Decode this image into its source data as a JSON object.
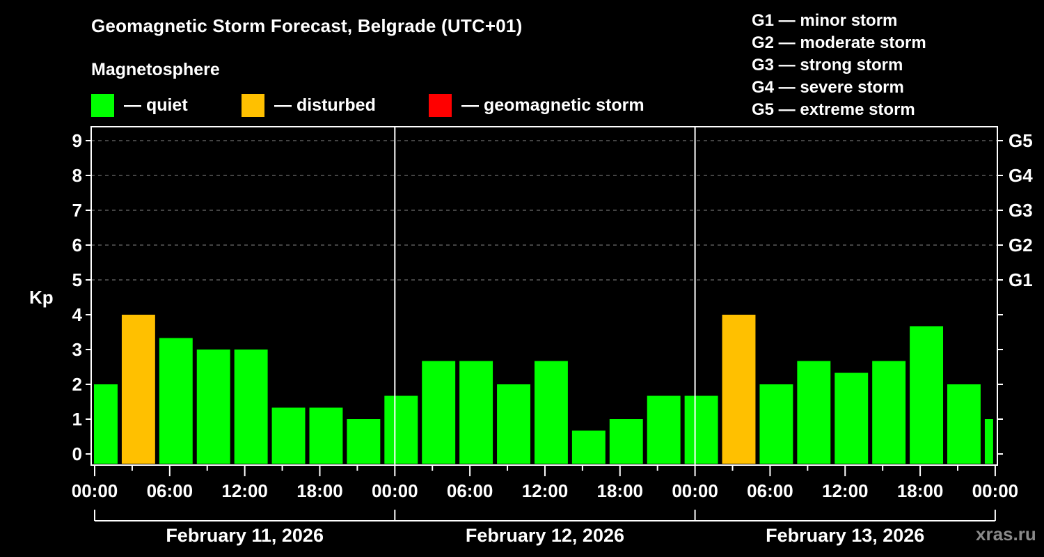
{
  "header": {
    "title": "Geomagnetic Storm Forecast, Belgrade (UTC+01)",
    "subtitle": "Magnetosphere"
  },
  "legend": {
    "items": [
      {
        "label": "— quiet",
        "color": "#00ff00"
      },
      {
        "label": "— disturbed",
        "color": "#ffc000"
      },
      {
        "label": "— geomagnetic storm",
        "color": "#ff0000"
      }
    ]
  },
  "g_scale_legend": [
    "G1 — minor storm",
    "G2 — moderate storm",
    "G3 — strong storm",
    "G4 — severe storm",
    "G5 — extreme storm"
  ],
  "watermark": "xras.ru",
  "chart_data": {
    "type": "bar",
    "title": "Geomagnetic Storm Forecast, Belgrade (UTC+01)",
    "xlabel": "",
    "ylabel": "Kp",
    "ylim": [
      0,
      9
    ],
    "yticks": [
      "0",
      "1",
      "2",
      "3",
      "4",
      "5",
      "6",
      "7",
      "8",
      "9"
    ],
    "right_axis_labels": [
      {
        "kp": 5,
        "label": "G1"
      },
      {
        "kp": 6,
        "label": "G2"
      },
      {
        "kp": 7,
        "label": "G3"
      },
      {
        "kp": 8,
        "label": "G4"
      },
      {
        "kp": 9,
        "label": "G5"
      }
    ],
    "grid": "dashed horizontal at Kp 5-9",
    "xticks": [
      "00:00",
      "06:00",
      "12:00",
      "18:00",
      "00:00",
      "06:00",
      "12:00",
      "18:00",
      "00:00",
      "06:00",
      "12:00",
      "18:00",
      "00:00"
    ],
    "days": [
      "February 11, 2026",
      "February 12, 2026",
      "February 13, 2026"
    ],
    "interval_hours": 3,
    "utc_offset_hours": 1,
    "categories": [
      "Feb 11 00:00-02:00",
      "Feb 11 02:00-05:00",
      "Feb 11 05:00-08:00",
      "Feb 11 08:00-11:00",
      "Feb 11 11:00-14:00",
      "Feb 11 14:00-17:00",
      "Feb 11 17:00-20:00",
      "Feb 11 20:00-23:00",
      "Feb 11 23:00-02:00",
      "Feb 12 02:00-05:00",
      "Feb 12 05:00-08:00",
      "Feb 12 08:00-11:00",
      "Feb 12 11:00-14:00",
      "Feb 12 14:00-17:00",
      "Feb 12 17:00-20:00",
      "Feb 12 20:00-23:00",
      "Feb 12 23:00-02:00",
      "Feb 13 02:00-05:00",
      "Feb 13 05:00-08:00",
      "Feb 13 08:00-11:00",
      "Feb 13 11:00-14:00",
      "Feb 13 14:00-17:00",
      "Feb 13 17:00-20:00",
      "Feb 13 20:00-23:00",
      "Feb 13 23:00-00:00"
    ],
    "values": [
      2,
      4,
      3.33,
      3,
      3,
      1.33,
      1.33,
      1,
      1.67,
      2.67,
      2.67,
      2,
      2.67,
      0.67,
      1,
      1.67,
      1.67,
      4,
      2,
      2.67,
      2.33,
      2.67,
      3.67,
      2,
      1
    ],
    "status": [
      "quiet",
      "disturbed",
      "quiet",
      "quiet",
      "quiet",
      "quiet",
      "quiet",
      "quiet",
      "quiet",
      "quiet",
      "quiet",
      "quiet",
      "quiet",
      "quiet",
      "quiet",
      "quiet",
      "quiet",
      "disturbed",
      "quiet",
      "quiet",
      "quiet",
      "quiet",
      "quiet",
      "quiet",
      "quiet"
    ],
    "colors": {
      "quiet": "#00ff00",
      "disturbed": "#ffc000",
      "storm": "#ff0000"
    }
  }
}
